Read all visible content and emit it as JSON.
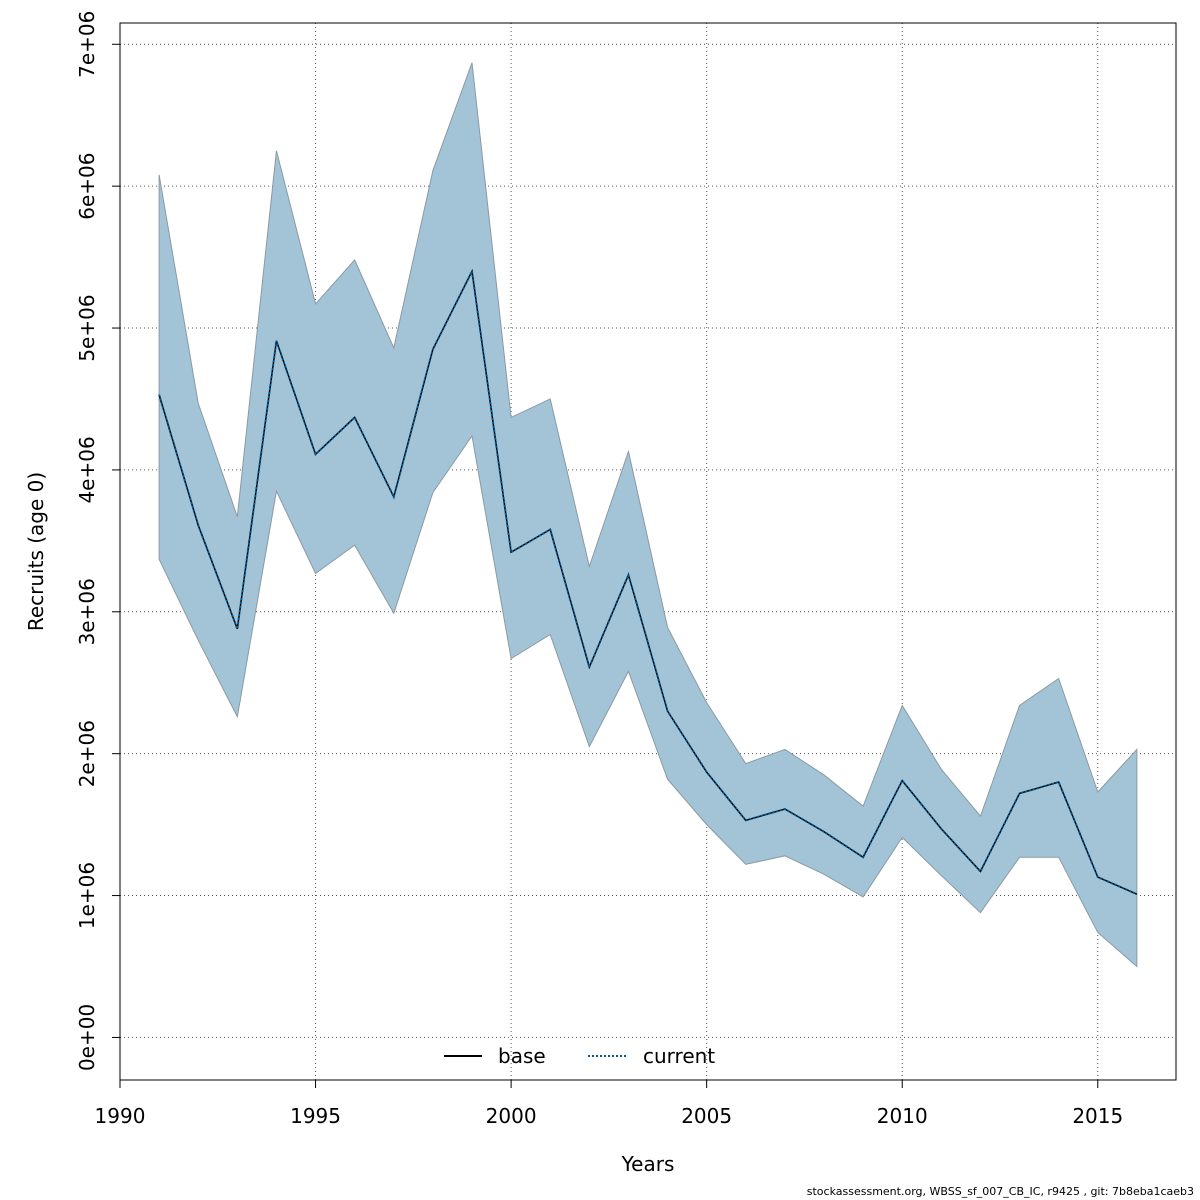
{
  "chart_data": {
    "type": "line",
    "xlabel": "Years",
    "ylabel": "Recruits (age 0)",
    "xlim": [
      1990,
      2017
    ],
    "ylim": [
      -300000,
      7150000
    ],
    "x_ticks": [
      1990,
      1995,
      2000,
      2005,
      2010,
      2015
    ],
    "y_ticks": [
      0,
      1000000,
      2000000,
      3000000,
      4000000,
      5000000,
      6000000,
      7000000
    ],
    "y_tick_labels": [
      "0e+00",
      "1e+06",
      "2e+06",
      "3e+06",
      "4e+06",
      "5e+06",
      "6e+06",
      "7e+06"
    ],
    "grid": true,
    "legend_position": "bottom-center",
    "x": [
      1991,
      1992,
      1993,
      1994,
      1995,
      1996,
      1997,
      1998,
      1999,
      2000,
      2001,
      2002,
      2003,
      2004,
      2005,
      2006,
      2007,
      2008,
      2009,
      2010,
      2011,
      2012,
      2013,
      2014,
      2015,
      2016
    ],
    "series": [
      {
        "name": "base",
        "style": "solid",
        "color": "#000000",
        "values": [
          4530000,
          3610000,
          2880000,
          4910000,
          4110000,
          4370000,
          3810000,
          4850000,
          5400000,
          3420000,
          3580000,
          2610000,
          3260000,
          2300000,
          1870000,
          1530000,
          1610000,
          1450000,
          1270000,
          1810000,
          1470000,
          1170000,
          1720000,
          1800000,
          1130000,
          1010000
        ],
        "lower": [
          3370000,
          2800000,
          2260000,
          3850000,
          3270000,
          3470000,
          2990000,
          3840000,
          4240000,
          2670000,
          2840000,
          2050000,
          2580000,
          1820000,
          1500000,
          1220000,
          1280000,
          1150000,
          990000,
          1410000,
          1140000,
          880000,
          1270000,
          1270000,
          740000,
          500000
        ],
        "upper": [
          6080000,
          4470000,
          3670000,
          6250000,
          5170000,
          5480000,
          4860000,
          6110000,
          6870000,
          4370000,
          4500000,
          3320000,
          4130000,
          2890000,
          2360000,
          1930000,
          2030000,
          1850000,
          1630000,
          2340000,
          1890000,
          1560000,
          2340000,
          2530000,
          1730000,
          2030000
        ]
      },
      {
        "name": "current",
        "style": "dotted",
        "color": "#005b96",
        "values": [
          4530000,
          3610000,
          2880000,
          4910000,
          4110000,
          4370000,
          3810000,
          4850000,
          5400000,
          3420000,
          3580000,
          2610000,
          3260000,
          2300000,
          1870000,
          1530000,
          1610000,
          1450000,
          1270000,
          1810000,
          1470000,
          1170000,
          1720000,
          1800000,
          1130000,
          1010000
        ]
      }
    ],
    "band_color": "#a3c4d6"
  },
  "footer": "stockassessment.org, WBSS_sf_007_CB_IC, r9425 , git: 7b8eba1caeb3"
}
